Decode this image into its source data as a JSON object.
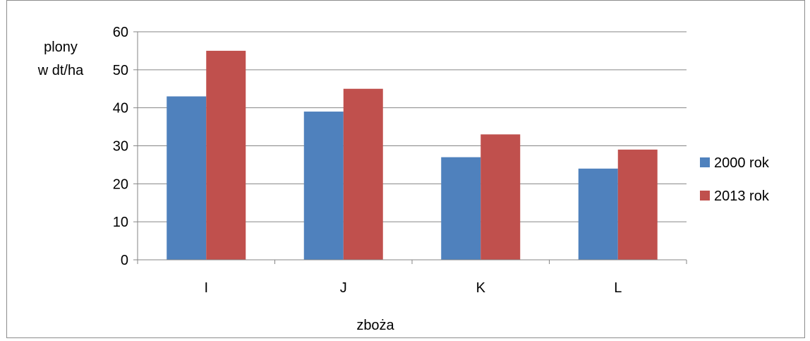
{
  "chart_data": {
    "type": "bar",
    "categories": [
      "I",
      "J",
      "K",
      "L"
    ],
    "series": [
      {
        "name": "2000 rok",
        "values": [
          43,
          39,
          27,
          24
        ],
        "color": "#4f81bd"
      },
      {
        "name": "2013 rok",
        "values": [
          55,
          45,
          33,
          29
        ],
        "color": "#c0504d"
      }
    ],
    "ylabel_lines": [
      "plony",
      "w dt/ha"
    ],
    "xlabel": "zboża",
    "ylim": [
      0,
      60
    ],
    "yticks": [
      0,
      10,
      20,
      30,
      40,
      50,
      60
    ],
    "grid": true,
    "legend_position": "right"
  }
}
